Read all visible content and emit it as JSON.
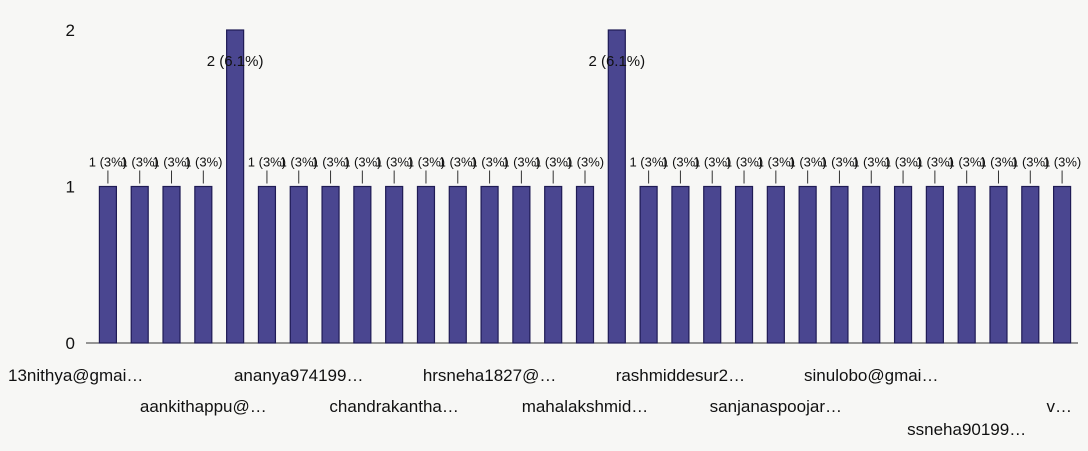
{
  "chart_data": {
    "type": "bar",
    "title": "",
    "xlabel": "",
    "ylabel": "",
    "ylim": [
      0,
      2
    ],
    "yticks": [
      "0",
      "1",
      "2"
    ],
    "grid": false,
    "legend": "none",
    "bar_color": "#4a4690",
    "bar_edge_color": "#1f1b55",
    "values": [
      1,
      1,
      1,
      1,
      2,
      1,
      1,
      1,
      1,
      1,
      1,
      1,
      1,
      1,
      1,
      1,
      2,
      1,
      1,
      1,
      1,
      1,
      1,
      1,
      1,
      1,
      1,
      1,
      1,
      1,
      1
    ],
    "data_labels": [
      "1 (3%)",
      "1 (3%)",
      "1 (3%)",
      "1 (3%)",
      "2 (6.1%)",
      "1 (3%)",
      "1 (3%)",
      "1 (3%)",
      "1 (3%)",
      "1 (3%)",
      "1 (3%)",
      "1 (3%)",
      "1 (3%)",
      "1 (3%)",
      "1 (3%)",
      "1 (3%)",
      "2 (6.1%)",
      "1 (3%)",
      "1 (3%)",
      "1 (3%)",
      "1 (3%)",
      "1 (3%)",
      "1 (3%)",
      "1 (3%)",
      "1 (3%)",
      "1 (3%)",
      "1 (3%)",
      "1 (3%)",
      "1 (3%)",
      "1 (3%)",
      "1 (3%)"
    ],
    "category_labels": [
      {
        "index": 0,
        "row": 0,
        "label": "13nithya@gmai…"
      },
      {
        "index": 3,
        "row": 1,
        "label": "aankithappu@…"
      },
      {
        "index": 6,
        "row": 0,
        "label": "ananya974199…"
      },
      {
        "index": 9,
        "row": 1,
        "label": "chandrakantha…"
      },
      {
        "index": 12,
        "row": 0,
        "label": "hrsneha1827@…"
      },
      {
        "index": 15,
        "row": 1,
        "label": "mahalakshmid…"
      },
      {
        "index": 18,
        "row": 0,
        "label": "rashmiddesur2…"
      },
      {
        "index": 21,
        "row": 1,
        "label": "sanjanaspoojar…"
      },
      {
        "index": 24,
        "row": 0,
        "label": "sinulobo@gmai…"
      },
      {
        "index": 27,
        "row": 2,
        "label": "ssneha90199…"
      },
      {
        "index": 30,
        "row": 1,
        "label": "v…"
      }
    ]
  }
}
